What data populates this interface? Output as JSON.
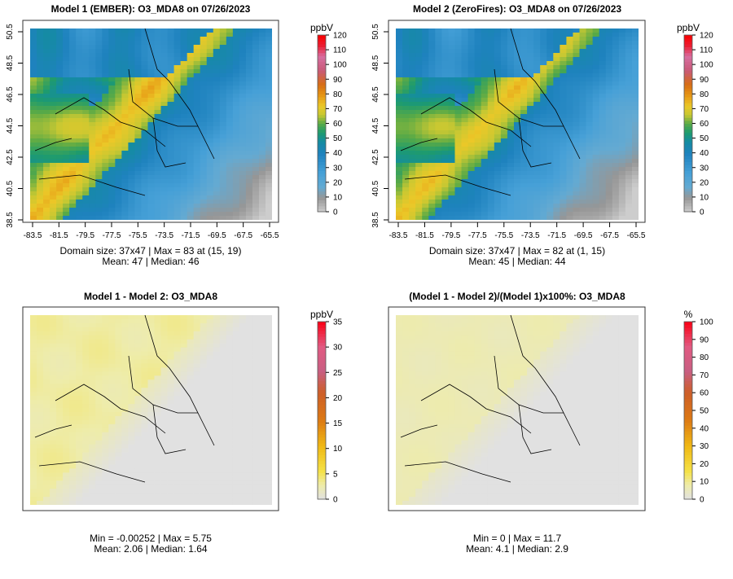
{
  "chart_data": [
    {
      "type": "heatmap",
      "title": "Model 1 (EMBER): O3_MDA8 on 07/26/2023",
      "xticks": [
        "-83.5",
        "-81.5",
        "-79.5",
        "-77.5",
        "-75.5",
        "-73.5",
        "-71.5",
        "-69.5",
        "-67.5",
        "-65.5"
      ],
      "yticks": [
        "38.5",
        "40.5",
        "42.5",
        "44.5",
        "46.5",
        "48.5",
        "50.5"
      ],
      "colorbar": {
        "unit": "ppbV",
        "ticks": [
          "0",
          "10",
          "20",
          "30",
          "40",
          "50",
          "60",
          "70",
          "80",
          "90",
          "100",
          "110",
          "120"
        ],
        "min": 0,
        "max": 120,
        "scale": "ozone"
      },
      "domain": "37x47",
      "stats": [
        "Domain size: 37x47 | Max = 83 at (15, 19)",
        "Mean: 47 |  Median: 46"
      ],
      "max": 83,
      "mean": 47,
      "median": 46
    },
    {
      "type": "heatmap",
      "title": "Model 2 (ZeroFires): O3_MDA8 on 07/26/2023",
      "xticks": [
        "-83.5",
        "-81.5",
        "-79.5",
        "-77.5",
        "-75.5",
        "-73.5",
        "-71.5",
        "-69.5",
        "-67.5",
        "-65.5"
      ],
      "yticks": [
        "38.5",
        "40.5",
        "42.5",
        "44.5",
        "46.5",
        "48.5",
        "50.5"
      ],
      "colorbar": {
        "unit": "ppbV",
        "ticks": [
          "0",
          "10",
          "20",
          "30",
          "40",
          "50",
          "60",
          "70",
          "80",
          "90",
          "100",
          "110",
          "120"
        ],
        "min": 0,
        "max": 120,
        "scale": "ozone"
      },
      "domain": "37x47",
      "stats": [
        "Domain size: 37x47 | Max = 82 at (1, 15)",
        "Mean: 45 |  Median: 44"
      ],
      "max": 82,
      "mean": 45,
      "median": 44
    },
    {
      "type": "heatmap",
      "title": "Model 1 - Model 2: O3_MDA8",
      "xticks": [],
      "yticks": [],
      "colorbar": {
        "unit": "ppbV",
        "ticks": [
          "0",
          "5",
          "10",
          "15",
          "20",
          "25",
          "30",
          "35"
        ],
        "min": 0,
        "max": 35,
        "scale": "diff"
      },
      "stats": [
        "Min = -0.00252 | Max = 5.75",
        "Mean: 2.06 |  Median: 1.64"
      ],
      "min": -0.00252,
      "max": 5.75,
      "mean": 2.06,
      "median": 1.64
    },
    {
      "type": "heatmap",
      "title": "(Model 1 - Model 2)/(Model 1)x100%: O3_MDA8",
      "xticks": [],
      "yticks": [],
      "colorbar": {
        "unit": "%",
        "ticks": [
          "0",
          "10",
          "20",
          "30",
          "40",
          "50",
          "60",
          "70",
          "80",
          "90",
          "100"
        ],
        "min": 0,
        "max": 100,
        "scale": "diff"
      },
      "stats": [
        "Min = 0 | Max = 11.7",
        "Mean: 4.1 |  Median: 2.9"
      ],
      "min": 0,
      "max": 11.7,
      "mean": 4.1,
      "median": 2.9
    }
  ]
}
